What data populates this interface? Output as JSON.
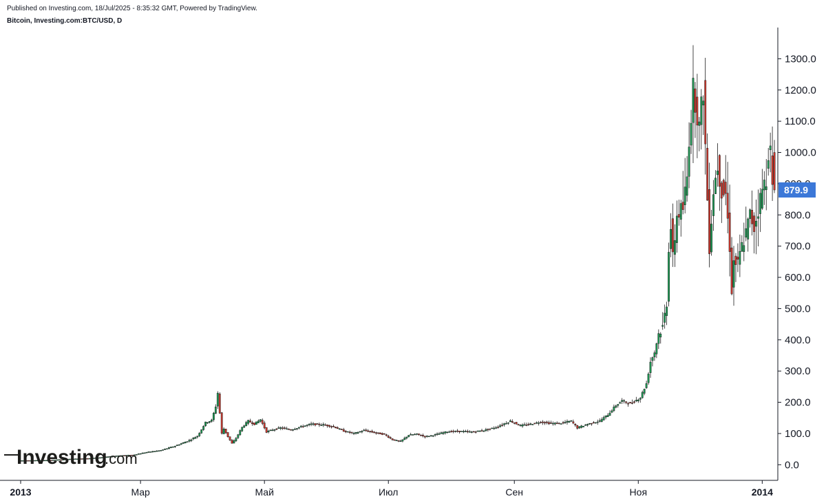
{
  "header": {
    "published": "Published on Investing.com, 18/Jul/2025 - 8:35:32 GMT, Powered by TradingView.",
    "symbol": "Bitcoin, Investing.com:BTC/USD, D"
  },
  "logo": {
    "word": "Investing",
    "suffix": ".com"
  },
  "colors": {
    "up": "#1c9b54",
    "down": "#d23a2f",
    "wick": "#1a1a1a",
    "axis": "#131722",
    "badge": "#3c78d8"
  },
  "price_badge": "879.9",
  "chart_data": {
    "type": "candlestick",
    "title": "",
    "xlabel": "",
    "ylabel": "",
    "ylim": [
      -50,
      1400
    ],
    "xlim": [
      "2013-01-01",
      "2014-01-08"
    ],
    "yticks": [
      "0.0",
      "100.0",
      "200.0",
      "300.0",
      "400.0",
      "500.0",
      "600.0",
      "700.0",
      "800.0",
      "900.0",
      "1000.0",
      "1100.0",
      "1200.0",
      "1300.0"
    ],
    "xticks": [
      {
        "label": "2013",
        "date": "2013-01-01"
      },
      {
        "label": "Мар",
        "date": "2013-03-01"
      },
      {
        "label": "Май",
        "date": "2013-05-01"
      },
      {
        "label": "Июл",
        "date": "2013-07-01"
      },
      {
        "label": "Сен",
        "date": "2013-09-01"
      },
      {
        "label": "Ноя",
        "date": "2013-11-01"
      },
      {
        "label": "2014",
        "date": "2014-01-01"
      }
    ],
    "last_price": 879.9,
    "series": [
      {
        "points": [
          [
            "2013-01-01",
            13.3
          ],
          [
            "2013-01-08",
            13.8
          ],
          [
            "2013-01-15",
            14.5
          ],
          [
            "2013-01-22",
            16.5
          ],
          [
            "2013-01-29",
            19.0
          ],
          [
            "2013-02-05",
            20.5
          ],
          [
            "2013-02-12",
            24.0
          ],
          [
            "2013-02-19",
            29.0
          ],
          [
            "2013-02-26",
            31.0
          ],
          [
            "2013-03-05",
            40.0
          ],
          [
            "2013-03-12",
            46.0
          ],
          [
            "2013-03-19",
            60.0
          ],
          [
            "2013-03-26",
            78.0
          ],
          [
            "2013-03-30",
            92.0
          ],
          [
            "2013-04-03",
            135.0
          ],
          [
            "2013-04-06",
            142.0
          ],
          [
            "2013-04-08",
            187.0
          ],
          [
            "2013-04-09",
            230.0
          ],
          [
            "2013-04-10",
            165.0
          ],
          [
            "2013-04-11",
            100.0
          ],
          [
            "2013-04-12",
            115.0
          ],
          [
            "2013-04-14",
            90.0
          ],
          [
            "2013-04-16",
            68.0
          ],
          [
            "2013-04-18",
            85.0
          ],
          [
            "2013-04-21",
            120.0
          ],
          [
            "2013-04-24",
            140.0
          ],
          [
            "2013-04-27",
            130.0
          ],
          [
            "2013-04-30",
            145.0
          ],
          [
            "2013-05-03",
            105.0
          ],
          [
            "2013-05-06",
            112.0
          ],
          [
            "2013-05-10",
            118.0
          ],
          [
            "2013-05-15",
            112.0
          ],
          [
            "2013-05-20",
            122.0
          ],
          [
            "2013-05-25",
            130.0
          ],
          [
            "2013-05-31",
            128.0
          ],
          [
            "2013-06-05",
            122.0
          ],
          [
            "2013-06-10",
            108.0
          ],
          [
            "2013-06-15",
            100.0
          ],
          [
            "2013-06-20",
            110.0
          ],
          [
            "2013-06-25",
            103.0
          ],
          [
            "2013-06-30",
            97.0
          ],
          [
            "2013-07-04",
            80.0
          ],
          [
            "2013-07-08",
            75.0
          ],
          [
            "2013-07-12",
            95.0
          ],
          [
            "2013-07-16",
            98.0
          ],
          [
            "2013-07-20",
            90.0
          ],
          [
            "2013-07-25",
            96.0
          ],
          [
            "2013-07-31",
            106.0
          ],
          [
            "2013-08-06",
            107.0
          ],
          [
            "2013-08-12",
            105.0
          ],
          [
            "2013-08-18",
            110.0
          ],
          [
            "2013-08-24",
            120.0
          ],
          [
            "2013-08-31",
            140.0
          ],
          [
            "2013-09-05",
            125.0
          ],
          [
            "2013-09-10",
            130.0
          ],
          [
            "2013-09-15",
            137.0
          ],
          [
            "2013-09-20",
            132.0
          ],
          [
            "2013-09-25",
            133.0
          ],
          [
            "2013-09-30",
            140.0
          ],
          [
            "2013-10-03",
            118.0
          ],
          [
            "2013-10-08",
            130.0
          ],
          [
            "2013-10-14",
            140.0
          ],
          [
            "2013-10-18",
            160.0
          ],
          [
            "2013-10-22",
            190.0
          ],
          [
            "2013-10-25",
            205.0
          ],
          [
            "2013-10-29",
            195.0
          ],
          [
            "2013-11-03",
            215.0
          ],
          [
            "2013-11-06",
            260.0
          ],
          [
            "2013-11-08",
            330.0
          ],
          [
            "2013-11-10",
            360.0
          ],
          [
            "2013-11-12",
            420.0
          ],
          [
            "2013-11-14",
            440.0
          ],
          [
            "2013-11-16",
            520.0
          ],
          [
            "2013-11-17",
            700.0
          ],
          [
            "2013-11-18",
            760.0
          ],
          [
            "2013-11-19",
            660.0
          ],
          [
            "2013-11-21",
            800.0
          ],
          [
            "2013-11-24",
            820.0
          ],
          [
            "2013-11-26",
            920.0
          ],
          [
            "2013-11-27",
            1050.0
          ],
          [
            "2013-11-29",
            1200.0
          ],
          [
            "2013-11-30",
            1170.0
          ],
          [
            "2013-12-02",
            1080.0
          ],
          [
            "2013-12-04",
            1200.0
          ],
          [
            "2013-12-05",
            1020.0
          ],
          [
            "2013-12-06",
            850.0
          ],
          [
            "2013-12-07",
            700.0
          ],
          [
            "2013-12-09",
            880.0
          ],
          [
            "2013-12-11",
            960.0
          ],
          [
            "2013-12-13",
            880.0
          ],
          [
            "2013-12-15",
            870.0
          ],
          [
            "2013-12-17",
            700.0
          ],
          [
            "2013-12-18",
            560.0
          ],
          [
            "2013-12-19",
            650.0
          ],
          [
            "2013-12-21",
            640.0
          ],
          [
            "2013-12-23",
            700.0
          ],
          [
            "2013-12-25",
            740.0
          ],
          [
            "2013-12-27",
            800.0
          ],
          [
            "2013-12-29",
            760.0
          ],
          [
            "2013-12-31",
            820.0
          ],
          [
            "2014-01-02",
            880.0
          ],
          [
            "2014-01-04",
            920.0
          ],
          [
            "2014-01-05",
            1010.0
          ],
          [
            "2014-01-06",
            1000.0
          ],
          [
            "2014-01-07",
            879.9
          ]
        ]
      }
    ]
  }
}
